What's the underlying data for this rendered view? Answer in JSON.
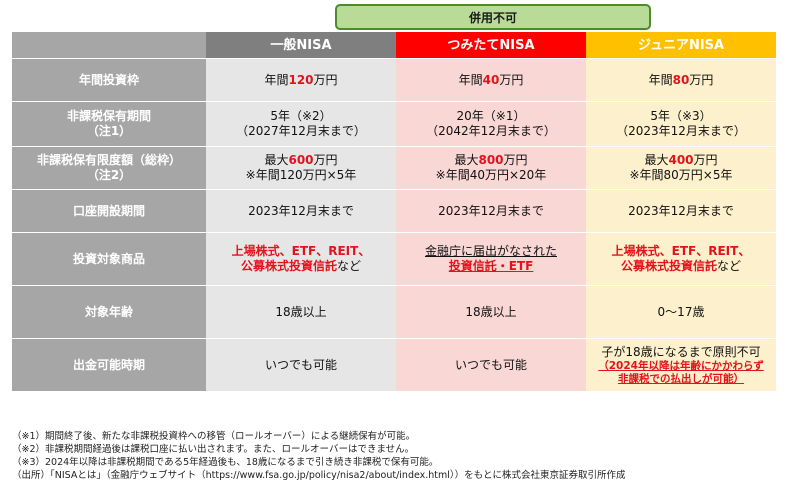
{
  "banner": "併用不可",
  "headers": [
    "",
    "一般NISA",
    "つみたてNISA",
    "ジュニアNISA"
  ],
  "rows": {
    "annual_limit": {
      "label": "年間投資枠",
      "c1": {
        "pre": "年間",
        "num": "120",
        "post": "万円"
      },
      "c2": {
        "pre": "年間",
        "num": "40",
        "post": "万円"
      },
      "c3": {
        "pre": "年間",
        "num": "80",
        "post": "万円"
      }
    },
    "period": {
      "label1": "非課税保有期間",
      "label2": "（注1）",
      "c1": {
        "line1": "5年（※2）",
        "line2": "（2027年12月末まで）"
      },
      "c2": {
        "line1": "20年（※1）",
        "line2": "（2042年12月末まで）"
      },
      "c3": {
        "line1": "5年（※3）",
        "line2": "（2023年12月末まで）"
      }
    },
    "max_amount": {
      "label1": "非課税保有限度額（総枠）",
      "label2": "（注2）",
      "c1": {
        "pre": "最大",
        "num": "600",
        "post": "万円",
        "line2": "※年間120万円×5年"
      },
      "c2": {
        "pre": "最大",
        "num": "800",
        "post": "万円",
        "line2": "※年間40万円×20年"
      },
      "c3": {
        "pre": "最大",
        "num": "400",
        "post": "万円",
        "line2": "※年間80万円×5年"
      }
    },
    "account_period": {
      "label": "口座開設期間",
      "c1": "2023年12月末まで",
      "c2": "2023年12月末まで",
      "c3": "2023年12月末まで"
    },
    "products": {
      "label": "投資対象商品",
      "c1": {
        "line1": "上場株式、ETF、REIT、",
        "line2_red": "公募株式投資信託",
        "line2_post": "など"
      },
      "c2": {
        "line1": "金融庁に届出がなされた",
        "line2": "投資信託・ETF"
      },
      "c3": {
        "line1": "上場株式、ETF、REIT、",
        "line2_red": "公募株式投資信託",
        "line2_post": "など"
      }
    },
    "age": {
      "label": "対象年齢",
      "c1": "18歳以上",
      "c2": "18歳以上",
      "c3": "0～17歳"
    },
    "withdrawal": {
      "label": "出金可能時期",
      "c1": "いつでも可能",
      "c2": "いつでも可能",
      "c3": {
        "line1": "子が18歳になるまで原則不可",
        "line2": "（2024年以降は年齢にかかわらず",
        "line3": "非課税での払出しが可能）"
      }
    }
  },
  "footnotes": [
    "（※1）期間終了後、新たな非課税投資枠への移管（ロールオーバー）による継続保有が可能。",
    "（※2）非課税期間経過後は課税口座に払い出されます。また、ロールオーバーはできません。",
    "（※3）2024年以降は非課税期間である5年経過後も、18歳になるまで引き続き非課税で保有可能。",
    "（出所）「NISAとは」（金融庁ウェブサイト（https://www.fsa.go.jp/policy/nisa2/about/index.html））をもとに株式会社東京証券取引所作成"
  ],
  "colors": {
    "general": "#7f7f7f",
    "tsumitate": "#ff0000",
    "junior": "#ffc000",
    "label_bg": "#a6a6a6",
    "emphasis_red": "#e3131b",
    "banner_bg": "#b8db97"
  }
}
